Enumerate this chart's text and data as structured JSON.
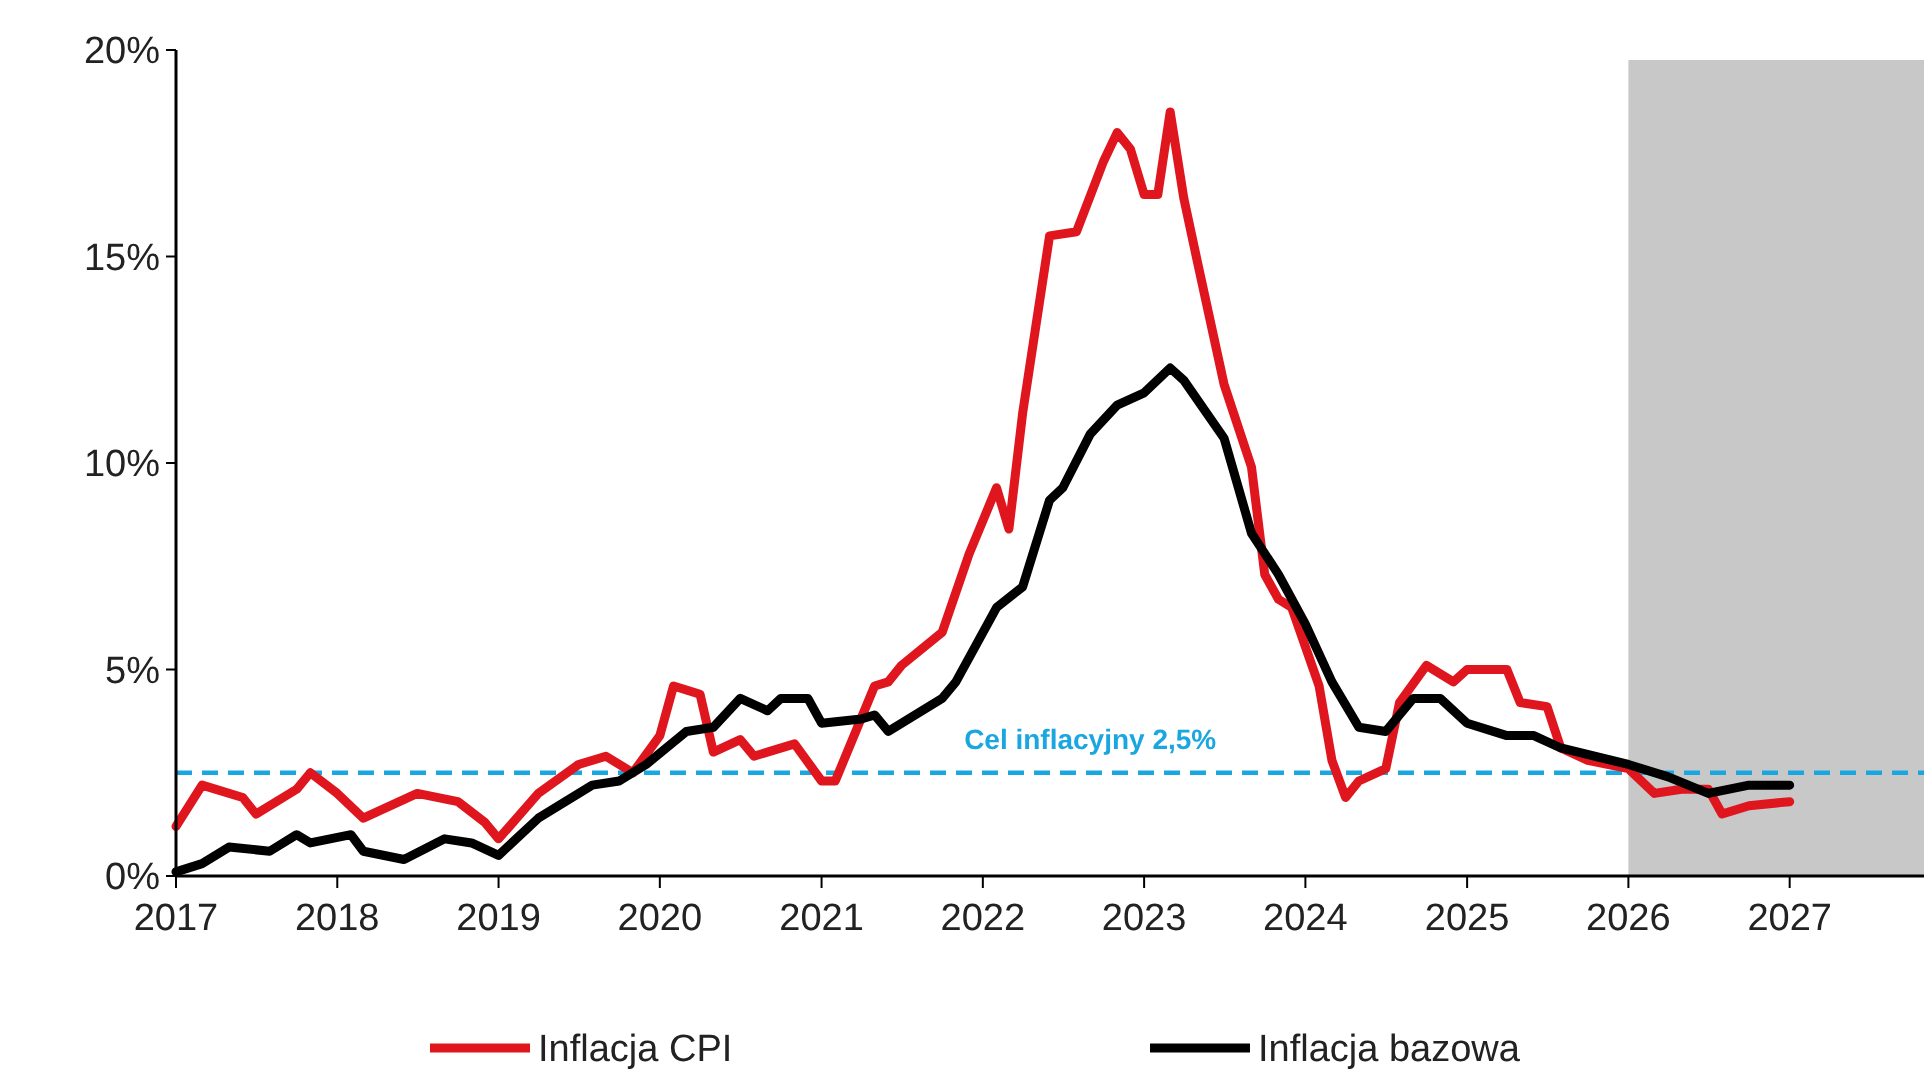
{
  "chart_data": {
    "type": "line",
    "x": [
      "2017-01",
      "2017-03",
      "2017-06",
      "2017-07",
      "2017-10",
      "2017-11",
      "2018-01",
      "2018-03",
      "2018-07",
      "2018-10",
      "2018-12",
      "2019-01",
      "2019-04",
      "2019-07",
      "2019-09",
      "2019-11",
      "2020-01",
      "2020-02",
      "2020-04",
      "2020-05",
      "2020-07",
      "2020-08",
      "2020-11",
      "2021-01",
      "2021-02",
      "2021-05",
      "2021-06",
      "2021-07",
      "2021-10",
      "2021-12",
      "2022-02",
      "2022-03",
      "2022-04",
      "2022-06",
      "2022-08",
      "2022-10",
      "2022-11",
      "2022-12",
      "2023-01",
      "2023-02",
      "2023-03",
      "2023-04",
      "2023-05",
      "2023-07",
      "2023-09",
      "2023-10",
      "2023-11",
      "2023-12",
      "2024-02",
      "2024-03",
      "2024-04",
      "2024-05",
      "2024-07",
      "2024-08",
      "2024-10",
      "2024-12",
      "2025-01",
      "2025-04",
      "2025-05",
      "2025-07",
      "2025-08",
      "2025-10",
      "2026-01",
      "2026-03",
      "2026-05",
      "2026-07",
      "2026-08",
      "2026-10",
      "2027-01"
    ],
    "series": [
      {
        "name": "Inflacja CPI",
        "color": "#e0161e",
        "values": [
          1.2,
          2.2,
          1.9,
          1.5,
          2.1,
          2.5,
          2.0,
          1.4,
          2.0,
          1.8,
          1.3,
          0.9,
          2.0,
          2.7,
          2.9,
          2.5,
          3.4,
          4.6,
          4.4,
          3.0,
          3.3,
          2.9,
          3.2,
          2.3,
          2.3,
          4.6,
          4.7,
          5.1,
          5.9,
          7.8,
          9.4,
          8.4,
          11.2,
          15.5,
          15.6,
          17.3,
          18.0,
          17.6,
          16.5,
          16.5,
          18.5,
          16.4,
          14.9,
          11.9,
          9.9,
          7.3,
          6.7,
          6.5,
          4.6,
          2.8,
          1.9,
          2.3,
          2.6,
          4.2,
          5.1,
          4.7,
          5.0,
          5.0,
          4.2,
          4.1,
          3.1,
          2.8,
          2.6,
          2.0,
          2.1,
          2.1,
          1.5,
          1.7,
          1.8
        ]
      },
      {
        "name": "Inflacja bazowa",
        "color": "#000000",
        "x": [
          "2017-01",
          "2017-03",
          "2017-05",
          "2017-08",
          "2017-10",
          "2017-11",
          "2018-02",
          "2018-03",
          "2018-06",
          "2018-09",
          "2018-11",
          "2019-01",
          "2019-04",
          "2019-06",
          "2019-08",
          "2019-10",
          "2019-12",
          "2020-03",
          "2020-05",
          "2020-07",
          "2020-09",
          "2020-10",
          "2020-12",
          "2021-01",
          "2021-04",
          "2021-05",
          "2021-06",
          "2021-10",
          "2021-11",
          "2022-02",
          "2022-04",
          "2022-06",
          "2022-07",
          "2022-09",
          "2022-11",
          "2023-01",
          "2023-03",
          "2023-04",
          "2023-07",
          "2023-09",
          "2023-11",
          "2024-01",
          "2024-03",
          "2024-05",
          "2024-07",
          "2024-09",
          "2024-11",
          "2025-01",
          "2025-04",
          "2025-06",
          "2025-08",
          "2026-01",
          "2026-04",
          "2026-07",
          "2026-10",
          "2027-01"
        ],
        "values": [
          0.1,
          0.3,
          0.7,
          0.6,
          1.0,
          0.8,
          1.0,
          0.6,
          0.4,
          0.9,
          0.8,
          0.5,
          1.4,
          1.8,
          2.2,
          2.3,
          2.7,
          3.5,
          3.6,
          4.3,
          4.0,
          4.3,
          4.3,
          3.7,
          3.8,
          3.9,
          3.5,
          4.3,
          4.7,
          6.5,
          7.0,
          9.1,
          9.4,
          10.7,
          11.4,
          11.7,
          12.3,
          12.0,
          10.6,
          8.3,
          7.3,
          6.1,
          4.7,
          3.6,
          3.5,
          4.3,
          4.3,
          3.7,
          3.4,
          3.4,
          3.1,
          2.7,
          2.4,
          2.0,
          2.2,
          2.2
        ]
      }
    ],
    "xlim": [
      "2017-01",
      "2027-11"
    ],
    "xticks": [
      "2017",
      "2018",
      "2019",
      "2020",
      "2021",
      "2022",
      "2023",
      "2024",
      "2025",
      "2026",
      "2027"
    ],
    "ylim": [
      0,
      20
    ],
    "yticks": [
      {
        "value": 0,
        "label": "0%"
      },
      {
        "value": 5,
        "label": "5%"
      },
      {
        "value": 10,
        "label": "10%"
      },
      {
        "value": 15,
        "label": "15%"
      },
      {
        "value": 20,
        "label": "20%"
      }
    ],
    "ref_lines": [
      {
        "axis": "y",
        "value": 2.5,
        "label": "Cel inflacyjny 2,5%",
        "color": "#1aa7e0",
        "line_style": "dashed"
      }
    ],
    "bands": [
      {
        "axis": "x",
        "from": "2026-01",
        "to": "2027-11",
        "color": "#c8c8c8"
      }
    ],
    "grid": false,
    "legend": "bottom",
    "marker": "none",
    "line_style": "solid"
  }
}
